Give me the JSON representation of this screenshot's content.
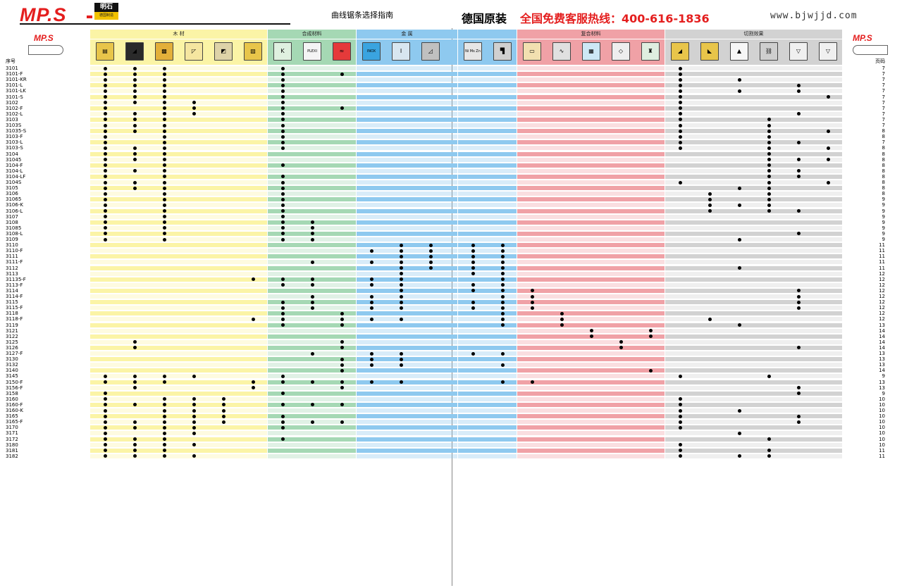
{
  "header": {
    "logo": "MP.S",
    "logo_cn": "明石",
    "logo_cn_sub": "德国制造",
    "subtitle": "曲线锯条选择指南",
    "origin": "德国原装",
    "hotline": "全国免费客服热线：400-616-1836",
    "website": "www.bjwjjd.com"
  },
  "columns": {
    "model_label": "序号",
    "page_label": "页码",
    "logo_small": "MP.S"
  },
  "groups": [
    {
      "label": "木 材",
      "color": "#fbf4a6"
    },
    {
      "label": "合成材料",
      "color": "#a5d8b4"
    },
    {
      "label": "金 属",
      "color": "#8ec9ef"
    },
    {
      "label": "",
      "color": "#8ec9ef"
    },
    {
      "label": "复合材料",
      "color": "#f0a1a6"
    },
    {
      "label": "切割效果",
      "color": "#d2d2d2"
    }
  ],
  "icons": [
    {
      "name": "softwood-icon",
      "glyph": "▤",
      "bg": "#e8c54a"
    },
    {
      "name": "hardwood-icon",
      "glyph": "◢",
      "bg": "#2a2a2a"
    },
    {
      "name": "chipboard-icon",
      "glyph": "▩",
      "bg": "#e3b03a"
    },
    {
      "name": "plywood-icon",
      "glyph": "◸",
      "bg": "#f5e6a0"
    },
    {
      "name": "laminate-icon",
      "glyph": "◩",
      "bg": "#ded3a8"
    },
    {
      "name": "wood-nails-icon",
      "glyph": "▨",
      "bg": "#e8c54a"
    },
    {
      "name": "grp-icon",
      "glyph": "K",
      "bg": "#dff0e0"
    },
    {
      "name": "plexi-icon",
      "glyph": "PLEXI",
      "bg": "#f4f4f4"
    },
    {
      "name": "soft-plastic-icon",
      "glyph": "≈",
      "bg": "#e53a3a"
    },
    {
      "name": "stainless-icon",
      "glyph": "INOX",
      "bg": "#3aa4e0"
    },
    {
      "name": "steel-profile-icon",
      "glyph": "I",
      "bg": "#d8e6f0"
    },
    {
      "name": "metal-sheet-icon",
      "glyph": "◿",
      "bg": "#c0c0c0"
    },
    {
      "name": "nonferrous-icon",
      "glyph": "Ni Ms Zn",
      "bg": "#e6e6e6"
    },
    {
      "name": "aluminium-profile-icon",
      "glyph": "▜",
      "bg": "#d0d0d0"
    },
    {
      "name": "sandwich-panel-icon",
      "glyph": "▭",
      "bg": "#f2e0b0"
    },
    {
      "name": "corrugated-icon",
      "glyph": "∿",
      "bg": "#e0e0e0"
    },
    {
      "name": "tile-icon",
      "glyph": "▦",
      "bg": "#cde8f5"
    },
    {
      "name": "plasterboard-icon",
      "glyph": "◇",
      "bg": "#eeeeee"
    },
    {
      "name": "glass-bottle-icon",
      "glyph": "♜",
      "bg": "#dfeee0"
    },
    {
      "name": "fast-cut-icon",
      "glyph": "◢",
      "bg": "#e8c54a"
    },
    {
      "name": "clean-cut-icon",
      "glyph": "◣",
      "bg": "#e8c54a"
    },
    {
      "name": "curve-cut-icon",
      "glyph": "▲",
      "bg": "#f7f7f7"
    },
    {
      "name": "chain-cut-icon",
      "glyph": "⛓",
      "bg": "#cfcfcf"
    },
    {
      "name": "triangle-l-icon",
      "glyph": "▽",
      "bg": "#f0f0f0"
    },
    {
      "name": "triangle-s-icon",
      "glyph": "▽",
      "bg": "#f0f0f0"
    }
  ],
  "rows": [
    {
      "model": "3101",
      "page": "7",
      "dots": [
        0,
        1,
        2,
        6,
        19
      ]
    },
    {
      "model": "3101-F",
      "page": "7",
      "dots": [
        0,
        1,
        2,
        6,
        8,
        19
      ]
    },
    {
      "model": "3101-KR",
      "page": "7",
      "dots": [
        0,
        1,
        2,
        6,
        19,
        21
      ]
    },
    {
      "model": "3101-L",
      "page": "7",
      "dots": [
        0,
        1,
        2,
        6,
        19,
        23
      ]
    },
    {
      "model": "3101-LK",
      "page": "7",
      "dots": [
        0,
        1,
        2,
        6,
        19,
        21,
        23
      ]
    },
    {
      "model": "3101-S",
      "page": "7",
      "dots": [
        0,
        1,
        2,
        6,
        19,
        24
      ]
    },
    {
      "model": "3102",
      "page": "7",
      "dots": [
        0,
        1,
        2,
        3,
        6,
        19
      ]
    },
    {
      "model": "3102-F",
      "page": "7",
      "dots": [
        0,
        2,
        3,
        6,
        8,
        19
      ]
    },
    {
      "model": "3102-L",
      "page": "7",
      "dots": [
        0,
        1,
        2,
        3,
        6,
        19,
        23
      ]
    },
    {
      "model": "3103",
      "page": "7",
      "dots": [
        0,
        1,
        2,
        6,
        19,
        22
      ]
    },
    {
      "model": "3103S",
      "page": "7",
      "dots": [
        0,
        1,
        2,
        6,
        19,
        22
      ]
    },
    {
      "model": "31035-S",
      "page": "8",
      "dots": [
        0,
        1,
        2,
        6,
        19,
        22,
        24
      ]
    },
    {
      "model": "3103-F",
      "page": "8",
      "dots": [
        0,
        2,
        6,
        19,
        22
      ]
    },
    {
      "model": "3103-L",
      "page": "7",
      "dots": [
        0,
        2,
        6,
        19,
        22,
        23
      ]
    },
    {
      "model": "3103-S",
      "page": "8",
      "dots": [
        0,
        1,
        2,
        6,
        19,
        22,
        24
      ]
    },
    {
      "model": "3104",
      "page": "8",
      "dots": [
        0,
        1,
        2,
        22
      ]
    },
    {
      "model": "31045",
      "page": "8",
      "dots": [
        0,
        1,
        2,
        22,
        23,
        24
      ]
    },
    {
      "model": "3104-F",
      "page": "8",
      "dots": [
        0,
        2,
        6,
        22
      ]
    },
    {
      "model": "3104-L",
      "page": "8",
      "dots": [
        0,
        1,
        2,
        22,
        23
      ]
    },
    {
      "model": "3104-LF",
      "page": "8",
      "dots": [
        0,
        2,
        6,
        22,
        23
      ]
    },
    {
      "model": "3104S",
      "page": "8",
      "dots": [
        0,
        1,
        2,
        6,
        19,
        22,
        24
      ]
    },
    {
      "model": "3105",
      "page": "8",
      "dots": [
        0,
        1,
        2,
        6,
        21,
        22
      ]
    },
    {
      "model": "3106",
      "page": "8",
      "dots": [
        0,
        2,
        6,
        20,
        22
      ]
    },
    {
      "model": "31065",
      "page": "9",
      "dots": [
        0,
        2,
        6,
        20,
        22
      ]
    },
    {
      "model": "3106-K",
      "page": "9",
      "dots": [
        0,
        2,
        6,
        20,
        21,
        22
      ]
    },
    {
      "model": "3106-L",
      "page": "9",
      "dots": [
        0,
        2,
        6,
        20,
        22,
        23
      ]
    },
    {
      "model": "3107",
      "page": "9",
      "dots": [
        0,
        2,
        6
      ]
    },
    {
      "model": "3108",
      "page": "9",
      "dots": [
        0,
        2,
        6,
        7
      ]
    },
    {
      "model": "31085",
      "page": "9",
      "dots": [
        0,
        2,
        6,
        7
      ]
    },
    {
      "model": "3108-L",
      "page": "9",
      "dots": [
        0,
        2,
        6,
        7,
        23
      ]
    },
    {
      "model": "3109",
      "page": "9",
      "dots": [
        0,
        2,
        6,
        7,
        21
      ]
    },
    {
      "model": "3110",
      "page": "11",
      "dots": [
        10,
        11,
        12,
        13
      ]
    },
    {
      "model": "3110-F",
      "page": "11",
      "dots": [
        9,
        10,
        11,
        12,
        13
      ]
    },
    {
      "model": "3111",
      "page": "11",
      "dots": [
        10,
        11,
        12,
        13
      ]
    },
    {
      "model": "3111-F",
      "page": "11",
      "dots": [
        7,
        9,
        10,
        11,
        12,
        13
      ]
    },
    {
      "model": "3112",
      "page": "11",
      "dots": [
        10,
        11,
        12,
        13,
        21
      ]
    },
    {
      "model": "3113",
      "page": "12",
      "dots": [
        10,
        12,
        13
      ]
    },
    {
      "model": "31135-F",
      "page": "12",
      "dots": [
        5,
        6,
        7,
        9,
        10,
        13
      ]
    },
    {
      "model": "3113-F",
      "page": "12",
      "dots": [
        6,
        7,
        9,
        10,
        12,
        13
      ]
    },
    {
      "model": "3114",
      "page": "12",
      "dots": [
        10,
        12,
        13,
        14,
        23
      ]
    },
    {
      "model": "3114-F",
      "page": "12",
      "dots": [
        7,
        9,
        10,
        13,
        14,
        23
      ]
    },
    {
      "model": "3115",
      "page": "12",
      "dots": [
        6,
        7,
        9,
        10,
        12,
        13,
        14,
        23
      ]
    },
    {
      "model": "3115-F",
      "page": "12",
      "dots": [
        6,
        7,
        9,
        10,
        12,
        13,
        14,
        23
      ]
    },
    {
      "model": "3118",
      "page": "12",
      "dots": [
        6,
        8,
        13,
        15
      ]
    },
    {
      "model": "3118-F",
      "page": "12",
      "dots": [
        5,
        6,
        8,
        9,
        10,
        13,
        15,
        20
      ]
    },
    {
      "model": "3119",
      "page": "13",
      "dots": [
        6,
        8,
        13,
        15,
        21
      ]
    },
    {
      "model": "3121",
      "page": "14",
      "dots": [
        16,
        18
      ]
    },
    {
      "model": "3122",
      "page": "14",
      "dots": [
        16,
        18
      ]
    },
    {
      "model": "3125",
      "page": "14",
      "dots": [
        1,
        8,
        17
      ]
    },
    {
      "model": "3126",
      "page": "14",
      "dots": [
        1,
        8,
        17,
        23
      ]
    },
    {
      "model": "3127-F",
      "page": "13",
      "dots": [
        7,
        9,
        10,
        12,
        13
      ]
    },
    {
      "model": "3130",
      "page": "13",
      "dots": [
        8,
        9,
        10
      ]
    },
    {
      "model": "3132",
      "page": "13",
      "dots": [
        8,
        9,
        10,
        13
      ]
    },
    {
      "model": "3140",
      "page": "14",
      "dots": [
        8,
        18
      ]
    },
    {
      "model": "3145",
      "page": "9",
      "dots": [
        0,
        1,
        2,
        3,
        6,
        19,
        22
      ]
    },
    {
      "model": "3150-F",
      "page": "13",
      "dots": [
        0,
        1,
        2,
        5,
        6,
        7,
        8,
        9,
        10,
        13,
        14
      ]
    },
    {
      "model": "3156-F",
      "page": "13",
      "dots": [
        1,
        5,
        8,
        23
      ]
    },
    {
      "model": "3158",
      "page": "9",
      "dots": [
        0,
        6,
        23
      ]
    },
    {
      "model": "3160",
      "page": "10",
      "dots": [
        0,
        2,
        3,
        4,
        19
      ]
    },
    {
      "model": "3160-F",
      "page": "10",
      "dots": [
        0,
        1,
        2,
        3,
        4,
        6,
        7,
        8,
        19
      ]
    },
    {
      "model": "3160-K",
      "page": "10",
      "dots": [
        0,
        2,
        3,
        4,
        19,
        21
      ]
    },
    {
      "model": "3165",
      "page": "10",
      "dots": [
        0,
        2,
        3,
        4,
        6,
        19,
        23
      ]
    },
    {
      "model": "3165-F",
      "page": "10",
      "dots": [
        0,
        1,
        2,
        3,
        4,
        6,
        7,
        8,
        19,
        23
      ]
    },
    {
      "model": "3170",
      "page": "10",
      "dots": [
        0,
        1,
        2,
        3,
        6,
        19
      ]
    },
    {
      "model": "3171",
      "page": "10",
      "dots": [
        0,
        2,
        3,
        21
      ]
    },
    {
      "model": "3172",
      "page": "10",
      "dots": [
        0,
        1,
        2,
        6,
        22
      ]
    },
    {
      "model": "3180",
      "page": "10",
      "dots": [
        0,
        1,
        2,
        3,
        19
      ]
    },
    {
      "model": "3181",
      "page": "11",
      "dots": [
        0,
        1,
        2,
        19,
        22
      ]
    },
    {
      "model": "3182",
      "page": "11",
      "dots": [
        0,
        1,
        2,
        3,
        19,
        21,
        22
      ]
    }
  ]
}
